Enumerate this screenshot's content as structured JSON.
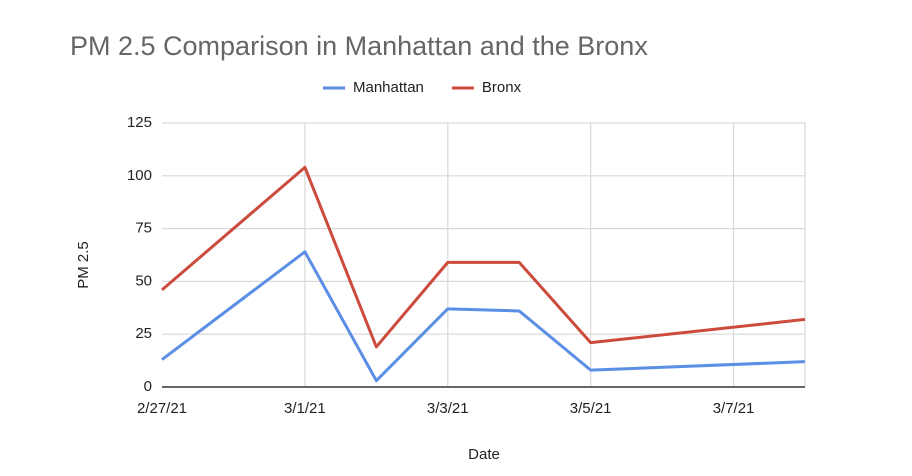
{
  "chart_data": {
    "type": "line",
    "title": "PM 2.5 Comparison in Manhattan and the Bronx",
    "x_label": "Date",
    "y_label": "PM 2.5",
    "x": [
      "2/27/21",
      "3/1/21",
      "3/2/21",
      "3/3/21",
      "3/4/21",
      "3/5/21",
      "3/8/21"
    ],
    "series": [
      {
        "name": "Manhattan",
        "color": "#5b8fe6",
        "values": [
          13,
          64,
          3,
          37,
          36,
          8,
          12
        ]
      },
      {
        "name": "Bronx",
        "color": "#cc4b3c",
        "values": [
          46,
          104,
          19,
          59,
          59,
          21,
          32
        ]
      }
    ],
    "xlim": [
      "2/27/21",
      "3/8/21"
    ],
    "xticks": [
      "2/27/21",
      "3/1/21",
      "3/3/21",
      "3/5/21",
      "3/7/21"
    ],
    "ylim": [
      0,
      125
    ],
    "yticks": [
      0,
      25,
      50,
      75,
      100,
      125
    ],
    "grid": true,
    "legend": "top"
  }
}
